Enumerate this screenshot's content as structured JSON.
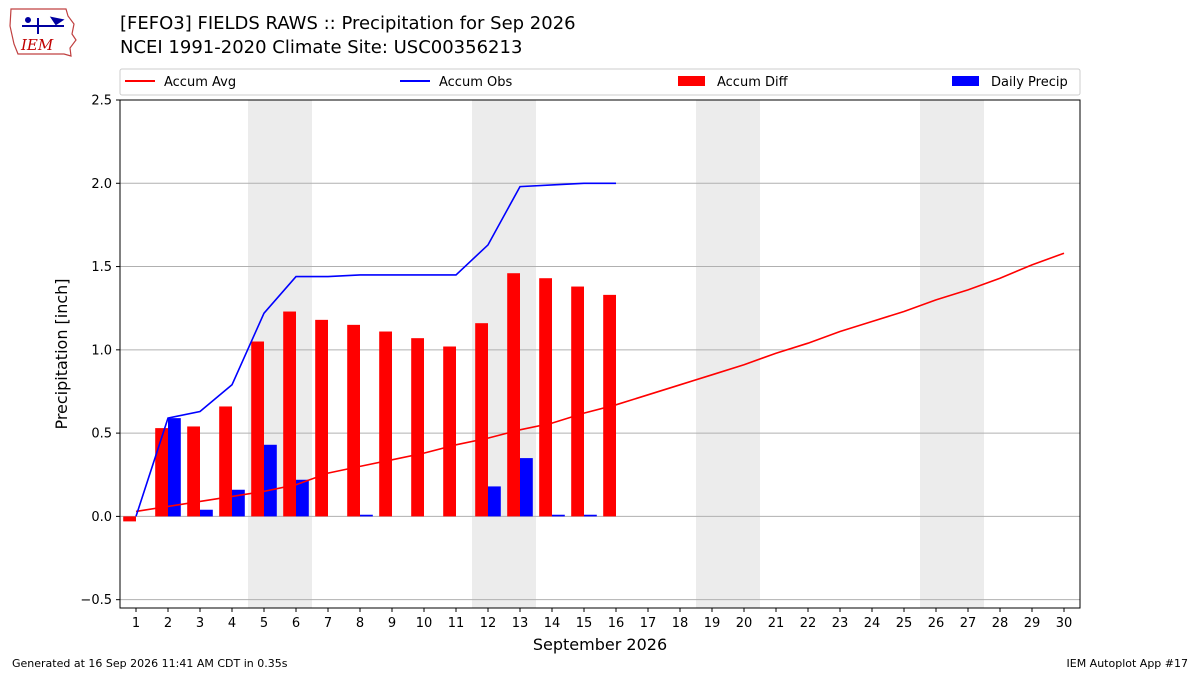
{
  "title_line1": "[FEFO3] FIELDS RAWS :: Precipitation for Sep 2026",
  "title_line2": "NCEI 1991-2020 Climate Site: USC00356213",
  "logo_text": "IEM",
  "footer_left": "Generated at 16 Sep 2026 11:41 AM CDT in 0.35s",
  "footer_right": "IEM Autoplot App #17",
  "chart_data": {
    "type": "bar",
    "xlabel": "September 2026",
    "ylabel": "Precipitation [inch]",
    "ylim": [
      -0.55,
      2.5
    ],
    "xlim": [
      0.5,
      30.5
    ],
    "yticks": [
      -0.5,
      0.0,
      0.5,
      1.0,
      1.5,
      2.0,
      2.5
    ],
    "ytick_labels": [
      "−0.5",
      "0.0",
      "0.5",
      "1.0",
      "1.5",
      "2.0",
      "2.5"
    ],
    "days": [
      1,
      2,
      3,
      4,
      5,
      6,
      7,
      8,
      9,
      10,
      11,
      12,
      13,
      14,
      15,
      16,
      17,
      18,
      19,
      20,
      21,
      22,
      23,
      24,
      25,
      26,
      27,
      28,
      29,
      30
    ],
    "weekend_days": [
      5,
      6,
      12,
      13,
      19,
      20,
      26,
      27
    ],
    "grid": "horizontal",
    "legend_position": "top",
    "series": [
      {
        "name": "Accum Avg",
        "kind": "line",
        "color": "#ff0000",
        "x": [
          1,
          2,
          3,
          4,
          5,
          6,
          7,
          8,
          9,
          10,
          11,
          12,
          13,
          14,
          15,
          16,
          17,
          18,
          19,
          20,
          21,
          22,
          23,
          24,
          25,
          26,
          27,
          28,
          29,
          30
        ],
        "values": [
          0.03,
          0.06,
          0.09,
          0.12,
          0.15,
          0.19,
          0.26,
          0.3,
          0.34,
          0.38,
          0.43,
          0.47,
          0.52,
          0.56,
          0.62,
          0.67,
          0.73,
          0.79,
          0.85,
          0.91,
          0.98,
          1.04,
          1.11,
          1.17,
          1.23,
          1.3,
          1.36,
          1.43,
          1.51,
          1.58
        ]
      },
      {
        "name": "Accum Obs",
        "kind": "line",
        "color": "#0000ff",
        "x": [
          1,
          2,
          3,
          4,
          5,
          6,
          7,
          8,
          9,
          10,
          11,
          12,
          13,
          14,
          15,
          16
        ],
        "values": [
          0.0,
          0.59,
          0.63,
          0.79,
          1.22,
          1.44,
          1.44,
          1.45,
          1.45,
          1.45,
          1.45,
          1.63,
          1.98,
          1.99,
          2.0,
          2.0
        ]
      },
      {
        "name": "Accum Diff",
        "kind": "bar",
        "color": "#ff0000",
        "x": [
          1,
          2,
          3,
          4,
          5,
          6,
          7,
          8,
          9,
          10,
          11,
          12,
          13,
          14,
          15,
          16
        ],
        "values": [
          -0.03,
          0.53,
          0.54,
          0.66,
          1.05,
          1.23,
          1.18,
          1.15,
          1.11,
          1.07,
          1.02,
          1.16,
          1.46,
          1.43,
          1.38,
          1.33
        ]
      },
      {
        "name": "Daily Precip",
        "kind": "bar",
        "color": "#0000ff",
        "x": [
          1,
          2,
          3,
          4,
          5,
          6,
          7,
          8,
          9,
          10,
          11,
          12,
          13,
          14,
          15,
          16
        ],
        "values": [
          0.0,
          0.59,
          0.04,
          0.16,
          0.43,
          0.22,
          0.0,
          0.01,
          0.0,
          0.0,
          0.0,
          0.18,
          0.35,
          0.01,
          0.01,
          0.0
        ]
      }
    ]
  }
}
